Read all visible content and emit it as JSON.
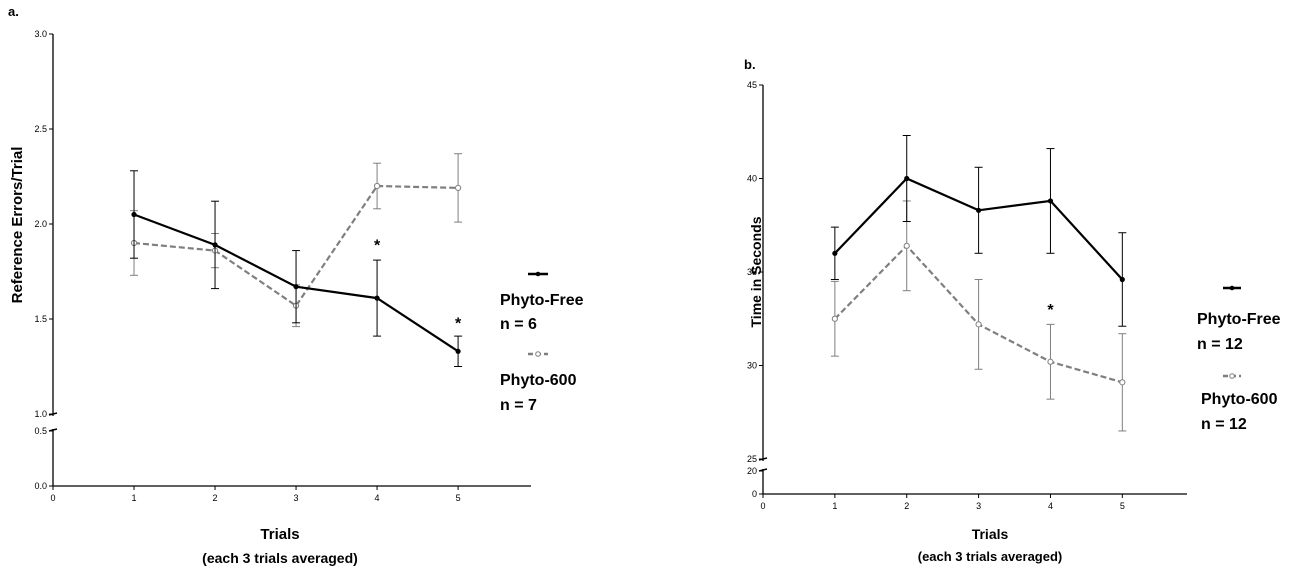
{
  "chart_data": [
    {
      "type": "line",
      "panel_label": "a.",
      "xlabel": "Trials",
      "xlabel_sub": "(each 3 trials averaged)",
      "ylabel": "Reference Errors/Trial",
      "x_ticks": [
        "0",
        "1",
        "2",
        "3",
        "4",
        "5"
      ],
      "y_ticks_upper": [
        "1.0",
        "1.5",
        "2.0",
        "2.5",
        "3.0"
      ],
      "y_ticks_lower": [
        "0.0",
        "0.5"
      ],
      "xlim": [
        0,
        5.9
      ],
      "ylim_upper": [
        1.0,
        3.0
      ],
      "ylim_lower": [
        0.0,
        0.5
      ],
      "x": [
        1,
        2,
        3,
        4,
        5
      ],
      "series": [
        {
          "name": "Phyto-Free",
          "n_label": "n = 6",
          "color": "#000000",
          "style": "solid",
          "marker": "filled-circle",
          "values": [
            2.05,
            1.89,
            1.67,
            1.61,
            1.33
          ],
          "errors": [
            0.23,
            0.23,
            0.19,
            0.2,
            0.08
          ]
        },
        {
          "name": "Phyto-600",
          "n_label": "n = 7",
          "color": "#7f7f7f",
          "style": "dashed",
          "marker": "open-circle",
          "values": [
            1.9,
            1.86,
            1.57,
            2.2,
            2.19
          ],
          "errors": [
            0.17,
            0.09,
            0.11,
            0.12,
            0.18
          ]
        }
      ],
      "annotations": [
        {
          "text": "*",
          "x": 4,
          "y": 1.86
        },
        {
          "text": "*",
          "x": 5,
          "y": 1.45
        }
      ]
    },
    {
      "type": "line",
      "panel_label": "b.",
      "xlabel": "Trials",
      "xlabel_sub": "(each 3 trials averaged)",
      "ylabel": "Time in Seconds",
      "x_ticks": [
        "0",
        "1",
        "2",
        "3",
        "4",
        "5"
      ],
      "y_ticks_upper": [
        "25",
        "30",
        "35",
        "40",
        "45"
      ],
      "y_ticks_lower": [
        "0",
        "20"
      ],
      "xlim": [
        0,
        5.9
      ],
      "ylim_upper": [
        25,
        45
      ],
      "ylim_lower": [
        0,
        20
      ],
      "x": [
        1,
        2,
        3,
        4,
        5
      ],
      "series": [
        {
          "name": "Phyto-Free",
          "n_label": "n = 12",
          "color": "#000000",
          "style": "solid",
          "marker": "filled-circle",
          "values": [
            36.0,
            40.0,
            38.3,
            38.8,
            34.6
          ],
          "errors": [
            1.4,
            2.3,
            2.3,
            2.8,
            2.5
          ]
        },
        {
          "name": "Phyto-600",
          "n_label": "n = 12",
          "color": "#7f7f7f",
          "style": "dashed",
          "marker": "open-circle",
          "values": [
            32.5,
            36.4,
            32.2,
            30.2,
            29.1
          ],
          "errors": [
            2.0,
            2.4,
            2.4,
            2.0,
            2.6
          ]
        }
      ],
      "annotations": [
        {
          "text": "*",
          "x": 4,
          "y": 32.7
        }
      ]
    }
  ]
}
